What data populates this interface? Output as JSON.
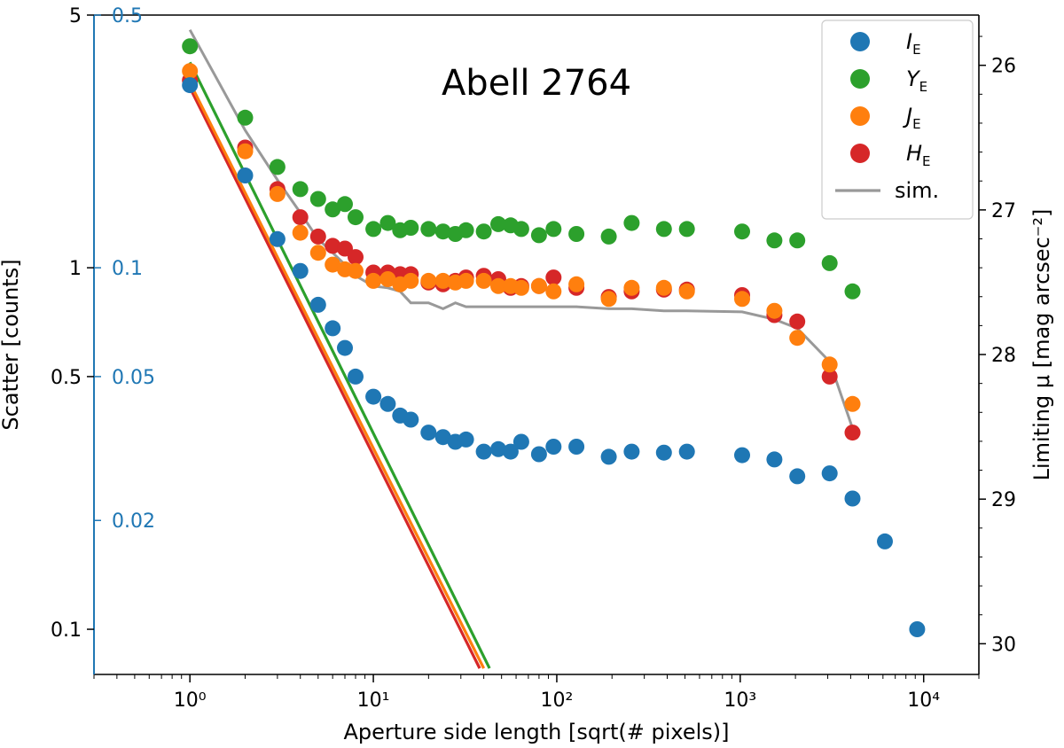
{
  "chart_data": {
    "type": "scatter",
    "annotation": "Abell 2764",
    "xlabel": "Aperture side length [sqrt(# pixels)]",
    "ylabel_left": "Scatter [counts]",
    "ylabel_right": "Limiting μ [mag arcsec⁻²]",
    "xscale": "log",
    "yscale": "log",
    "xlim": [
      0.3,
      20000
    ],
    "ylim": [
      0.075,
      5
    ],
    "x_ticks": [
      {
        "value": 1,
        "label": "10⁰"
      },
      {
        "value": 10,
        "label": "10¹"
      },
      {
        "value": 100,
        "label": "10²"
      },
      {
        "value": 1000,
        "label": "10³"
      },
      {
        "value": 10000,
        "label": "10⁴"
      }
    ],
    "y_ticks_left": [
      {
        "value": 0.1,
        "label": "0.1"
      },
      {
        "value": 0.5,
        "label": "0.5"
      },
      {
        "value": 1,
        "label": "1"
      },
      {
        "value": 5,
        "label": "5"
      }
    ],
    "y_ticks_inner": [
      {
        "value": 0.2,
        "label": "0.02"
      },
      {
        "value": 0.5,
        "label": "0.05"
      },
      {
        "value": 1,
        "label": "0.1"
      },
      {
        "value": 5,
        "label": "0.5"
      }
    ],
    "y_ticks_right": [
      {
        "value": 26,
        "label": "26"
      },
      {
        "value": 27,
        "label": "27"
      },
      {
        "value": 28,
        "label": "28"
      },
      {
        "value": 29,
        "label": "29"
      },
      {
        "value": 30,
        "label": "30"
      }
    ],
    "mu_axis": {
      "mag_at_scatter_1": 27.4
    },
    "legend": {
      "position": "top-right"
    },
    "series": [
      {
        "name": "I",
        "sub": "E",
        "color": "#1f77b4",
        "points": [
          [
            1,
            3.2
          ],
          [
            2,
            1.8
          ],
          [
            3,
            1.2
          ],
          [
            4,
            0.98
          ],
          [
            5,
            0.79
          ],
          [
            6,
            0.68
          ],
          [
            7,
            0.6
          ],
          [
            8,
            0.5
          ],
          [
            10,
            0.44
          ],
          [
            12,
            0.42
          ],
          [
            14,
            0.39
          ],
          [
            16,
            0.38
          ],
          [
            20,
            0.35
          ],
          [
            24,
            0.34
          ],
          [
            28,
            0.33
          ],
          [
            32,
            0.335
          ],
          [
            40,
            0.31
          ],
          [
            48,
            0.315
          ],
          [
            56,
            0.31
          ],
          [
            64,
            0.33
          ],
          [
            80,
            0.305
          ],
          [
            96,
            0.32
          ],
          [
            128,
            0.32
          ],
          [
            192,
            0.3
          ],
          [
            256,
            0.31
          ],
          [
            384,
            0.308
          ],
          [
            512,
            0.31
          ],
          [
            1024,
            0.303
          ],
          [
            1536,
            0.295
          ],
          [
            2048,
            0.265
          ],
          [
            3072,
            0.27
          ],
          [
            4096,
            0.23
          ],
          [
            6144,
            0.175
          ],
          [
            9216,
            0.1
          ]
        ]
      },
      {
        "name": "Y",
        "sub": "E",
        "color": "#2ca02c",
        "points": [
          [
            1,
            4.1
          ],
          [
            2,
            2.6
          ],
          [
            3,
            1.9
          ],
          [
            4,
            1.65
          ],
          [
            5,
            1.55
          ],
          [
            6,
            1.45
          ],
          [
            7,
            1.5
          ],
          [
            8,
            1.38
          ],
          [
            10,
            1.28
          ],
          [
            12,
            1.33
          ],
          [
            14,
            1.27
          ],
          [
            16,
            1.29
          ],
          [
            20,
            1.28
          ],
          [
            24,
            1.26
          ],
          [
            28,
            1.24
          ],
          [
            32,
            1.27
          ],
          [
            40,
            1.26
          ],
          [
            48,
            1.32
          ],
          [
            56,
            1.31
          ],
          [
            64,
            1.28
          ],
          [
            80,
            1.23
          ],
          [
            96,
            1.28
          ],
          [
            128,
            1.24
          ],
          [
            192,
            1.22
          ],
          [
            256,
            1.33
          ],
          [
            384,
            1.28
          ],
          [
            512,
            1.28
          ],
          [
            1024,
            1.26
          ],
          [
            1536,
            1.19
          ],
          [
            2048,
            1.19
          ],
          [
            3072,
            1.03
          ],
          [
            4096,
            0.86
          ]
        ]
      },
      {
        "name": "J",
        "sub": "E",
        "color": "#ff7f0e",
        "points": [
          [
            1,
            3.5
          ],
          [
            2,
            2.1
          ],
          [
            3,
            1.6
          ],
          [
            4,
            1.25
          ],
          [
            5,
            1.1
          ],
          [
            6,
            1.02
          ],
          [
            7,
            0.99
          ],
          [
            8,
            0.98
          ],
          [
            10,
            0.92
          ],
          [
            12,
            0.93
          ],
          [
            14,
            0.9
          ],
          [
            16,
            0.92
          ],
          [
            20,
            0.92
          ],
          [
            24,
            0.92
          ],
          [
            28,
            0.91
          ],
          [
            32,
            0.92
          ],
          [
            40,
            0.92
          ],
          [
            48,
            0.89
          ],
          [
            56,
            0.89
          ],
          [
            64,
            0.88
          ],
          [
            80,
            0.89
          ],
          [
            96,
            0.86
          ],
          [
            128,
            0.9
          ],
          [
            192,
            0.82
          ],
          [
            256,
            0.88
          ],
          [
            384,
            0.88
          ],
          [
            512,
            0.86
          ],
          [
            1024,
            0.82
          ],
          [
            1536,
            0.76
          ],
          [
            2048,
            0.64
          ],
          [
            3072,
            0.54
          ],
          [
            4096,
            0.42
          ]
        ]
      },
      {
        "name": "H",
        "sub": "E",
        "color": "#d62728",
        "points": [
          [
            1,
            3.3
          ],
          [
            2,
            2.15
          ],
          [
            3,
            1.65
          ],
          [
            4,
            1.38
          ],
          [
            5,
            1.22
          ],
          [
            6,
            1.15
          ],
          [
            7,
            1.13
          ],
          [
            8,
            1.07
          ],
          [
            10,
            0.97
          ],
          [
            12,
            0.97
          ],
          [
            14,
            0.96
          ],
          [
            16,
            0.96
          ],
          [
            20,
            0.91
          ],
          [
            24,
            0.9
          ],
          [
            28,
            0.92
          ],
          [
            32,
            0.94
          ],
          [
            40,
            0.95
          ],
          [
            48,
            0.93
          ],
          [
            56,
            0.88
          ],
          [
            64,
            0.89
          ],
          [
            80,
            0.89
          ],
          [
            96,
            0.94
          ],
          [
            128,
            0.88
          ],
          [
            192,
            0.83
          ],
          [
            256,
            0.86
          ],
          [
            384,
            0.87
          ],
          [
            512,
            0.87
          ],
          [
            1024,
            0.84
          ],
          [
            1536,
            0.74
          ],
          [
            2048,
            0.71
          ],
          [
            3072,
            0.5
          ],
          [
            4096,
            0.35
          ]
        ]
      }
    ],
    "lines": [
      {
        "name": "sim.",
        "color": "#999999",
        "points": [
          [
            1,
            4.55
          ],
          [
            2,
            2.4
          ],
          [
            3,
            1.75
          ],
          [
            4,
            1.42
          ],
          [
            5,
            1.2
          ],
          [
            6,
            1.1
          ],
          [
            7,
            1.02
          ],
          [
            8,
            0.95
          ],
          [
            10,
            0.89
          ],
          [
            12,
            0.88
          ],
          [
            14,
            0.86
          ],
          [
            16,
            0.8
          ],
          [
            20,
            0.8
          ],
          [
            24,
            0.77
          ],
          [
            28,
            0.8
          ],
          [
            32,
            0.78
          ],
          [
            40,
            0.78
          ],
          [
            48,
            0.78
          ],
          [
            56,
            0.78
          ],
          [
            64,
            0.78
          ],
          [
            80,
            0.78
          ],
          [
            96,
            0.78
          ],
          [
            128,
            0.78
          ],
          [
            192,
            0.77
          ],
          [
            256,
            0.77
          ],
          [
            384,
            0.76
          ],
          [
            512,
            0.76
          ],
          [
            1024,
            0.755
          ],
          [
            1536,
            0.72
          ],
          [
            2048,
            0.68
          ],
          [
            3072,
            0.55
          ],
          [
            4096,
            0.36
          ]
        ]
      },
      {
        "name": "",
        "color": "#d62728",
        "points": [
          [
            1,
            3.15
          ],
          [
            38,
            0.078
          ]
        ]
      },
      {
        "name": "",
        "color": "#ff7f0e",
        "points": [
          [
            1,
            3.25
          ],
          [
            40,
            0.078
          ]
        ]
      },
      {
        "name": "",
        "color": "#2ca02c",
        "points": [
          [
            1,
            3.7
          ],
          [
            43,
            0.078
          ]
        ]
      }
    ]
  }
}
